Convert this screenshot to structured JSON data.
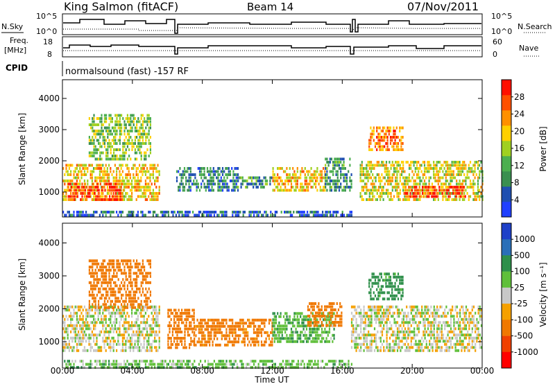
{
  "header": {
    "station": "King Salmon (fitACF)",
    "beam": "Beam 14",
    "date": "07/Nov/2011"
  },
  "params": {
    "nsky_label": "N.Sky",
    "nsearch_label": "N.Search",
    "noise_ticks": [
      "10^5",
      "10^0"
    ],
    "freq_label": "Freq.",
    "freq_unit": "[MHz]",
    "freq_ticks": [
      "18",
      "8"
    ],
    "nave_label": "Nave",
    "nave_ticks": [
      "60",
      "0"
    ],
    "cpid_label": "CPID",
    "cpid_text": "normalsound (fast) -157 RF"
  },
  "colors": {
    "power": [
      "#2040ff",
      "#1f4fb0",
      "#3a8f50",
      "#4caf50",
      "#a0d020",
      "#ffd000",
      "#ff9000",
      "#ff5000",
      "#ff1000"
    ],
    "velocity": [
      "#1e40c8",
      "#2a6fb8",
      "#2e8f4a",
      "#5fbf3a",
      "#c8c8c8",
      "#f5a000",
      "#f07800",
      "#f04000",
      "#ff0000"
    ]
  },
  "chart_data": [
    {
      "type": "heatmap",
      "name": "power",
      "xlabel": "",
      "ylabel": "Slant Range [km]",
      "x_ticks": [
        "00:00",
        "04:00",
        "08:00",
        "12:00",
        "16:00",
        "20:00",
        "00:00"
      ],
      "y_ticks": [
        "1000",
        "2000",
        "3000",
        "4000"
      ],
      "xlim": [
        0,
        24
      ],
      "ylim": [
        200,
        4600
      ],
      "colorbar_label": "Power [dB]",
      "colorbar_ticks": [
        "4",
        "8",
        "12",
        "16",
        "20",
        "24",
        "28"
      ],
      "colorbar_range": [
        0,
        32
      ],
      "bands": [
        {
          "t": [
            0,
            5.5
          ],
          "r": [
            700,
            1900
          ],
          "v": 20
        },
        {
          "t": [
            0.3,
            3.5
          ],
          "r": [
            750,
            1300
          ],
          "v": 28
        },
        {
          "t": [
            1.5,
            5
          ],
          "r": [
            2000,
            3500
          ],
          "v": 14
        },
        {
          "t": [
            6.5,
            10
          ],
          "r": [
            1000,
            1800
          ],
          "v": 8
        },
        {
          "t": [
            10,
            12
          ],
          "r": [
            1100,
            1500
          ],
          "v": 10
        },
        {
          "t": [
            12,
            15
          ],
          "r": [
            1000,
            1800
          ],
          "v": 20
        },
        {
          "t": [
            15,
            16.5
          ],
          "r": [
            1000,
            2100
          ],
          "v": 10
        },
        {
          "t": [
            17.5,
            19.5
          ],
          "r": [
            2300,
            3100
          ],
          "v": 24
        },
        {
          "t": [
            17,
            24
          ],
          "r": [
            700,
            2000
          ],
          "v": 18
        },
        {
          "t": [
            19.5,
            23
          ],
          "r": [
            800,
            1200
          ],
          "v": 28
        },
        {
          "t": [
            0,
            16.5
          ],
          "r": [
            250,
            400
          ],
          "v": 6
        }
      ]
    },
    {
      "type": "heatmap",
      "name": "velocity",
      "xlabel": "Time UT",
      "ylabel": "Slant Range [km]",
      "x_ticks": [
        "00:00",
        "04:00",
        "08:00",
        "12:00",
        "16:00",
        "20:00",
        "00:00"
      ],
      "y_ticks": [
        "1000",
        "2000",
        "3000",
        "4000"
      ],
      "xlim": [
        0,
        24
      ],
      "ylim": [
        200,
        4600
      ],
      "colorbar_label": "Velocity [m s⁻¹]",
      "colorbar_ticks": [
        "-1000",
        "-500",
        "-100",
        "-25",
        "25",
        "100",
        "500",
        "1000"
      ],
      "bands": [
        {
          "t": [
            0,
            5.5
          ],
          "r": [
            700,
            2100
          ],
          "v": 0
        },
        {
          "t": [
            1.5,
            5
          ],
          "r": [
            2000,
            3500
          ],
          "v": -200
        },
        {
          "t": [
            6,
            7.5
          ],
          "r": [
            800,
            2000
          ],
          "v": -400
        },
        {
          "t": [
            7.5,
            12
          ],
          "r": [
            900,
            1700
          ],
          "v": -150
        },
        {
          "t": [
            12,
            15.5
          ],
          "r": [
            1000,
            1900
          ],
          "v": 80
        },
        {
          "t": [
            14,
            16
          ],
          "r": [
            1500,
            2200
          ],
          "v": -300
        },
        {
          "t": [
            17.5,
            19.5
          ],
          "r": [
            2300,
            3100
          ],
          "v": 150
        },
        {
          "t": [
            16.5,
            24
          ],
          "r": [
            700,
            2100
          ],
          "v": 0
        },
        {
          "t": [
            0,
            16.5
          ],
          "r": [
            250,
            450
          ],
          "v": 60
        }
      ]
    }
  ]
}
